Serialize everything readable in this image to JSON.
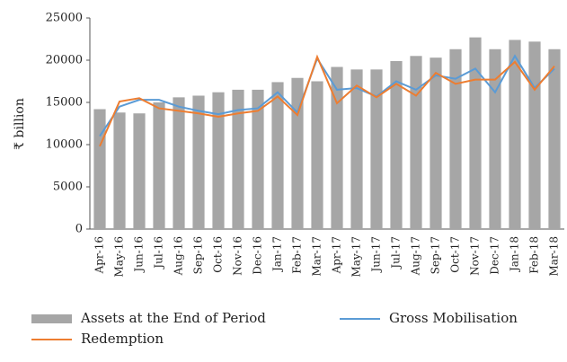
{
  "chart_data": {
    "type": "bar",
    "y_label": "₹ billion",
    "categories": [
      "Apr-16",
      "May-16",
      "Jun-16",
      "Jul-16",
      "Aug-16",
      "Sep-16",
      "Oct-16",
      "Nov-16",
      "Dec-16",
      "Jan-17",
      "Feb-17",
      "Mar-17",
      "Apr-17",
      "May-17",
      "Jun-17",
      "Jul-17",
      "Aug-17",
      "Sep-17",
      "Oct-17",
      "Nov-17",
      "Dec-17",
      "Jan-18",
      "Feb-18",
      "Mar-18"
    ],
    "series": [
      {
        "name": "Assets at the End of Period",
        "type": "bar",
        "color": "#a6a6a6",
        "values": [
          14200,
          13800,
          13700,
          15000,
          15600,
          15800,
          16200,
          16500,
          16500,
          17400,
          17900,
          17500,
          19200,
          18900,
          18900,
          19900,
          20500,
          20300,
          21300,
          22700,
          21300,
          22400,
          22200,
          21300
        ]
      },
      {
        "name": "Gross Mobilisation",
        "type": "line",
        "color": "#5b9bd5",
        "values": [
          11000,
          14500,
          15300,
          15300,
          14500,
          14000,
          13600,
          14100,
          14300,
          16200,
          13800,
          20200,
          16500,
          16700,
          15700,
          17500,
          16500,
          18200,
          17800,
          19000,
          16200,
          20500,
          16700,
          19000
        ]
      },
      {
        "name": "Redemption",
        "type": "line",
        "color": "#ed7d31",
        "values": [
          9800,
          15100,
          15500,
          14300,
          14000,
          13700,
          13300,
          13700,
          14000,
          15700,
          13500,
          20400,
          14900,
          17000,
          15600,
          17200,
          15800,
          18500,
          17200,
          17700,
          17700,
          19800,
          16500,
          19300
        ]
      }
    ],
    "ylim": [
      0,
      25000
    ],
    "yticks": [
      0,
      5000,
      10000,
      15000,
      20000,
      25000
    ],
    "grid": false
  }
}
